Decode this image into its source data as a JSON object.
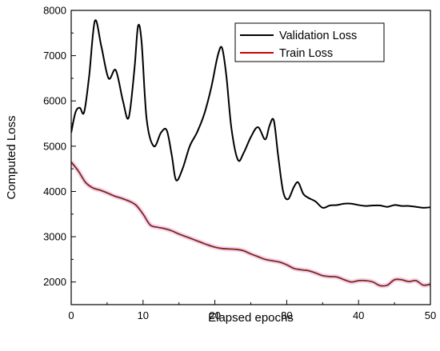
{
  "chart_data": {
    "type": "line",
    "title": "",
    "xlabel": "Elapsed epochs",
    "ylabel": "Computed Loss",
    "xlim": [
      0,
      50
    ],
    "ylim": [
      1500,
      8000
    ],
    "x_ticks": [
      0,
      10,
      20,
      30,
      40,
      50
    ],
    "y_ticks": [
      2000,
      3000,
      4000,
      5000,
      6000,
      7000,
      8000
    ],
    "grid": false,
    "legend_position": "top-right",
    "series": [
      {
        "name": "Validation Loss",
        "color": "#000000",
        "x": [
          0,
          0.6,
          1.2,
          1.8,
          2.5,
          3.3,
          4.2,
          5.2,
          6.2,
          7.2,
          8.0,
          8.8,
          9.3,
          9.8,
          10.5,
          11.5,
          12.5,
          13.3,
          14.0,
          14.6,
          15.5,
          16.5,
          17.5,
          18.5,
          19.5,
          20.4,
          21.0,
          21.6,
          22.3,
          23.2,
          24.0,
          25.0,
          26.0,
          27.0,
          27.6,
          28.2,
          28.8,
          29.5,
          30.2,
          31.0,
          31.6,
          32.3,
          33.0,
          34.0,
          35.0,
          36.0,
          37.0,
          38.0,
          39.0,
          40.0,
          41.0,
          42.0,
          43.0,
          44.0,
          45.0,
          46.0,
          47.0,
          48.0,
          49.0,
          50.0
        ],
        "values": [
          5300,
          5750,
          5850,
          5750,
          6550,
          7770,
          7200,
          6500,
          6680,
          6000,
          5630,
          6700,
          7650,
          7300,
          5600,
          5000,
          5300,
          5350,
          4800,
          4250,
          4500,
          5000,
          5300,
          5700,
          6300,
          7000,
          7170,
          6550,
          5400,
          4700,
          4850,
          5200,
          5420,
          5150,
          5450,
          5570,
          4800,
          4000,
          3830,
          4100,
          4200,
          3950,
          3860,
          3780,
          3640,
          3690,
          3700,
          3730,
          3730,
          3700,
          3680,
          3690,
          3690,
          3660,
          3700,
          3680,
          3680,
          3660,
          3640,
          3650
        ]
      },
      {
        "name": "Train Loss",
        "color": "#cc0000",
        "x": [
          0,
          1,
          2,
          3,
          4,
          5,
          6,
          7,
          8,
          9,
          10,
          11,
          12,
          13,
          14,
          15,
          16,
          17,
          18,
          19,
          20,
          21,
          22,
          23,
          24,
          25,
          26,
          27,
          28,
          29,
          30,
          31,
          32,
          33,
          34,
          35,
          36,
          37,
          38,
          39,
          40,
          41,
          42,
          43,
          44,
          45,
          46,
          47,
          48,
          49,
          50
        ],
        "values": [
          4650,
          4450,
          4200,
          4080,
          4030,
          3970,
          3900,
          3850,
          3790,
          3700,
          3500,
          3260,
          3210,
          3180,
          3130,
          3060,
          3000,
          2940,
          2880,
          2820,
          2770,
          2740,
          2730,
          2720,
          2690,
          2620,
          2560,
          2500,
          2470,
          2440,
          2380,
          2300,
          2270,
          2250,
          2200,
          2140,
          2120,
          2110,
          2050,
          2000,
          2030,
          2030,
          2000,
          1920,
          1930,
          2050,
          2050,
          2010,
          2030,
          1930,
          1950
        ]
      }
    ]
  }
}
